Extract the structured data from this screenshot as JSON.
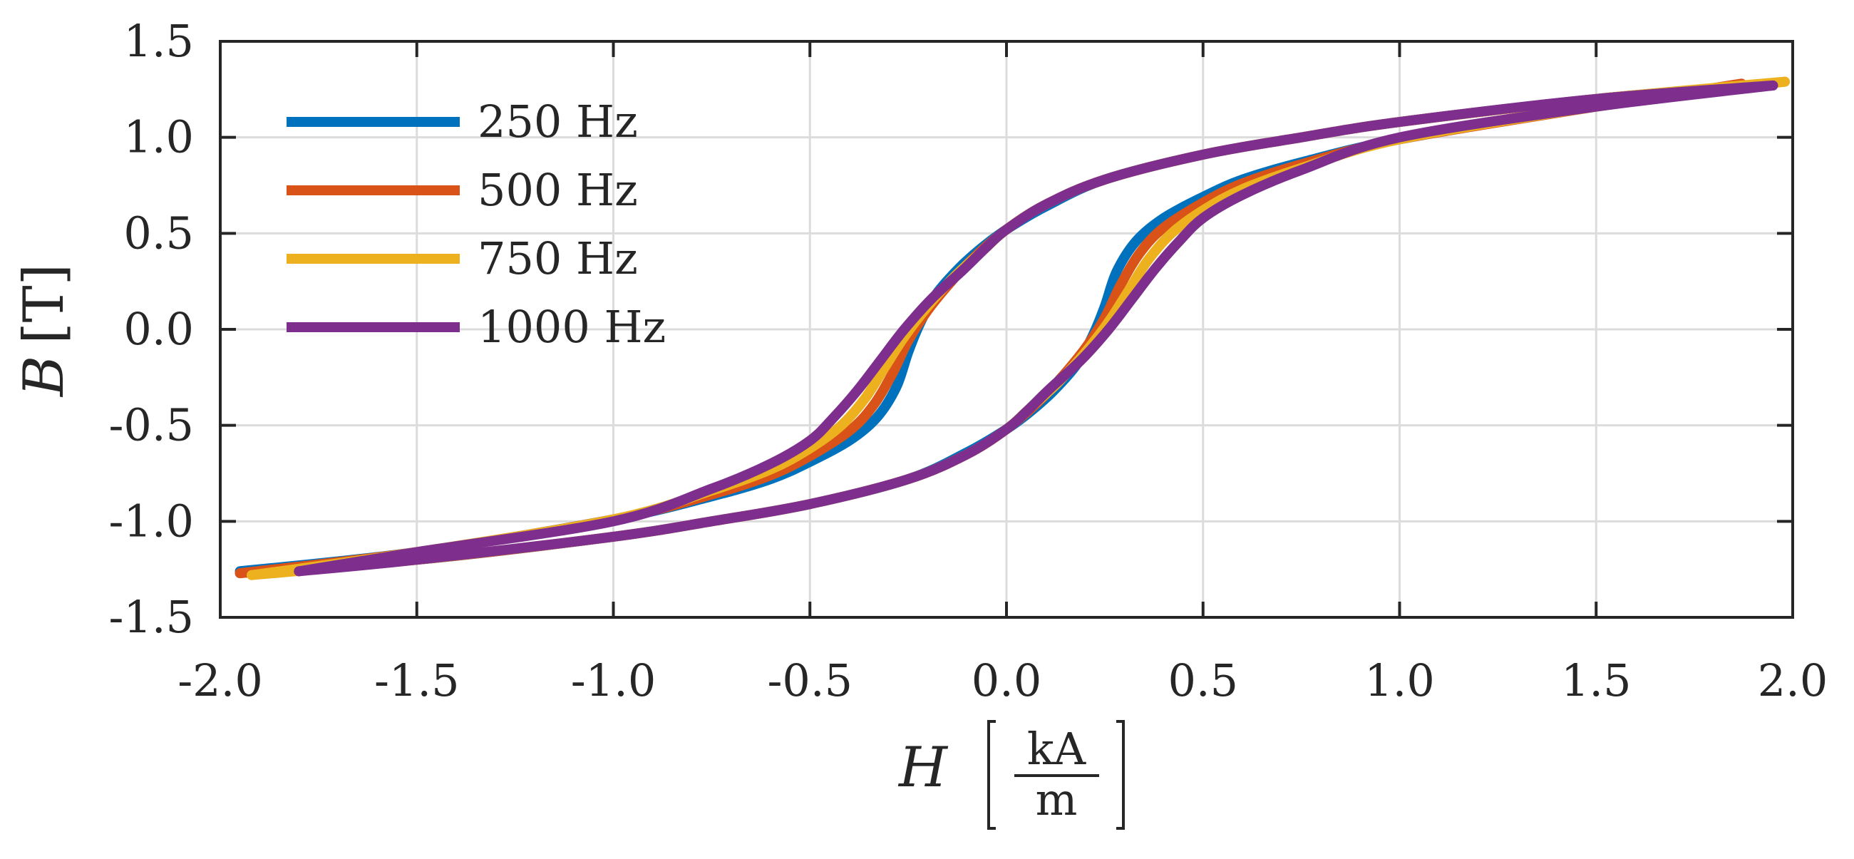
{
  "chart_data": {
    "type": "line",
    "title": "",
    "xlabel": {
      "symbol": "H",
      "unit_numerator": "kA",
      "unit_denominator": "m"
    },
    "ylabel": {
      "symbol": "B",
      "unit": "[T]"
    },
    "xlim": [
      -2.0,
      2.0
    ],
    "ylim": [
      -1.5,
      1.5
    ],
    "xticks": [
      -2.0,
      -1.5,
      -1.0,
      -0.5,
      0.0,
      0.5,
      1.0,
      1.5,
      2.0
    ],
    "yticks": [
      -1.5,
      -1.0,
      -0.5,
      0.0,
      0.5,
      1.0,
      1.5
    ],
    "xtick_labels": [
      "-2.0",
      "-1.5",
      "-1.0",
      "-0.5",
      "0.0",
      "0.5",
      "1.0",
      "1.5",
      "2.0"
    ],
    "ytick_labels": [
      "-1.5",
      "-1.0",
      "-0.5",
      "0.0",
      "0.5",
      "1.0",
      "1.5"
    ],
    "grid": true,
    "legend_position": "top-left",
    "series": [
      {
        "name": "250 Hz",
        "color": "#0072BD",
        "upper": [
          [
            -1.95,
            -1.26
          ],
          [
            -1.5,
            -1.16
          ],
          [
            -1.0,
            -0.99
          ],
          [
            -0.75,
            -0.87
          ],
          [
            -0.6,
            -0.78
          ],
          [
            -0.5,
            -0.69
          ],
          [
            -0.4,
            -0.58
          ],
          [
            -0.33,
            -0.46
          ],
          [
            -0.28,
            -0.3
          ],
          [
            -0.25,
            -0.12
          ],
          [
            -0.22,
            0.03
          ],
          [
            -0.18,
            0.18
          ],
          [
            -0.12,
            0.32
          ],
          [
            -0.06,
            0.43
          ],
          [
            0.0,
            0.52
          ],
          [
            0.1,
            0.64
          ],
          [
            0.25,
            0.78
          ],
          [
            0.5,
            0.91
          ],
          [
            0.75,
            1.0
          ],
          [
            1.0,
            1.08
          ],
          [
            1.5,
            1.2
          ],
          [
            1.95,
            1.28
          ]
        ],
        "lower": [
          [
            1.95,
            1.28
          ],
          [
            1.5,
            1.16
          ],
          [
            1.0,
            0.99
          ],
          [
            0.75,
            0.87
          ],
          [
            0.6,
            0.78
          ],
          [
            0.5,
            0.69
          ],
          [
            0.4,
            0.58
          ],
          [
            0.33,
            0.46
          ],
          [
            0.28,
            0.3
          ],
          [
            0.25,
            0.12
          ],
          [
            0.22,
            -0.03
          ],
          [
            0.18,
            -0.18
          ],
          [
            0.12,
            -0.32
          ],
          [
            0.06,
            -0.43
          ],
          [
            0.0,
            -0.52
          ],
          [
            -0.1,
            -0.64
          ],
          [
            -0.25,
            -0.78
          ],
          [
            -0.5,
            -0.91
          ],
          [
            -0.75,
            -1.0
          ],
          [
            -1.0,
            -1.08
          ],
          [
            -1.5,
            -1.2
          ],
          [
            -1.95,
            -1.26
          ]
        ]
      },
      {
        "name": "500 Hz",
        "color": "#D95319",
        "upper": [
          [
            -1.95,
            -1.27
          ],
          [
            -1.5,
            -1.16
          ],
          [
            -1.0,
            -0.99
          ],
          [
            -0.75,
            -0.86
          ],
          [
            -0.6,
            -0.76
          ],
          [
            -0.5,
            -0.66
          ],
          [
            -0.4,
            -0.53
          ],
          [
            -0.34,
            -0.4
          ],
          [
            -0.29,
            -0.23
          ],
          [
            -0.25,
            -0.06
          ],
          [
            -0.2,
            0.1
          ],
          [
            -0.14,
            0.25
          ],
          [
            -0.08,
            0.38
          ],
          [
            0.0,
            0.52
          ],
          [
            0.1,
            0.65
          ],
          [
            0.25,
            0.78
          ],
          [
            0.5,
            0.91
          ],
          [
            0.75,
            1.0
          ],
          [
            1.0,
            1.08
          ],
          [
            1.5,
            1.2
          ],
          [
            1.95,
            1.28
          ]
        ],
        "lower": [
          [
            1.87,
            1.28
          ],
          [
            1.5,
            1.16
          ],
          [
            1.0,
            0.99
          ],
          [
            0.75,
            0.86
          ],
          [
            0.6,
            0.76
          ],
          [
            0.5,
            0.66
          ],
          [
            0.4,
            0.53
          ],
          [
            0.34,
            0.4
          ],
          [
            0.29,
            0.23
          ],
          [
            0.25,
            0.06
          ],
          [
            0.2,
            -0.1
          ],
          [
            0.14,
            -0.25
          ],
          [
            0.08,
            -0.38
          ],
          [
            0.0,
            -0.52
          ],
          [
            -0.1,
            -0.65
          ],
          [
            -0.25,
            -0.78
          ],
          [
            -0.5,
            -0.91
          ],
          [
            -0.75,
            -1.0
          ],
          [
            -1.0,
            -1.08
          ],
          [
            -1.5,
            -1.2
          ],
          [
            -1.95,
            -1.27
          ]
        ]
      },
      {
        "name": "750 Hz",
        "color": "#EDB120",
        "upper": [
          [
            -1.92,
            -1.28
          ],
          [
            -1.5,
            -1.16
          ],
          [
            -1.0,
            -0.99
          ],
          [
            -0.75,
            -0.84
          ],
          [
            -0.6,
            -0.73
          ],
          [
            -0.5,
            -0.62
          ],
          [
            -0.42,
            -0.5
          ],
          [
            -0.36,
            -0.36
          ],
          [
            -0.31,
            -0.2
          ],
          [
            -0.26,
            -0.04
          ],
          [
            -0.2,
            0.12
          ],
          [
            -0.13,
            0.28
          ],
          [
            -0.06,
            0.41
          ],
          [
            0.0,
            0.52
          ],
          [
            0.1,
            0.65
          ],
          [
            0.25,
            0.78
          ],
          [
            0.5,
            0.91
          ],
          [
            0.75,
            1.0
          ],
          [
            1.0,
            1.08
          ],
          [
            1.5,
            1.2
          ],
          [
            1.98,
            1.29
          ]
        ],
        "lower": [
          [
            1.98,
            1.29
          ],
          [
            1.5,
            1.16
          ],
          [
            1.0,
            0.99
          ],
          [
            0.75,
            0.84
          ],
          [
            0.6,
            0.73
          ],
          [
            0.5,
            0.62
          ],
          [
            0.42,
            0.5
          ],
          [
            0.36,
            0.36
          ],
          [
            0.31,
            0.2
          ],
          [
            0.26,
            0.04
          ],
          [
            0.2,
            -0.12
          ],
          [
            0.13,
            -0.28
          ],
          [
            0.06,
            -0.41
          ],
          [
            0.0,
            -0.52
          ],
          [
            -0.1,
            -0.65
          ],
          [
            -0.25,
            -0.78
          ],
          [
            -0.5,
            -0.91
          ],
          [
            -0.75,
            -1.0
          ],
          [
            -1.0,
            -1.08
          ],
          [
            -1.5,
            -1.2
          ],
          [
            -1.92,
            -1.28
          ]
        ]
      },
      {
        "name": "1000 Hz",
        "color": "#7E2F8E",
        "upper": [
          [
            -1.8,
            -1.26
          ],
          [
            -1.5,
            -1.16
          ],
          [
            -1.0,
            -1.0
          ],
          [
            -0.75,
            -0.83
          ],
          [
            -0.6,
            -0.7
          ],
          [
            -0.5,
            -0.58
          ],
          [
            -0.44,
            -0.46
          ],
          [
            -0.38,
            -0.32
          ],
          [
            -0.32,
            -0.16
          ],
          [
            -0.26,
            0.0
          ],
          [
            -0.19,
            0.16
          ],
          [
            -0.11,
            0.31
          ],
          [
            -0.05,
            0.43
          ],
          [
            0.0,
            0.52
          ],
          [
            0.1,
            0.65
          ],
          [
            0.25,
            0.78
          ],
          [
            0.5,
            0.91
          ],
          [
            0.75,
            1.0
          ],
          [
            1.0,
            1.08
          ],
          [
            1.5,
            1.2
          ],
          [
            1.95,
            1.27
          ]
        ],
        "lower": [
          [
            1.95,
            1.27
          ],
          [
            1.5,
            1.16
          ],
          [
            1.0,
            1.0
          ],
          [
            0.75,
            0.83
          ],
          [
            0.6,
            0.7
          ],
          [
            0.5,
            0.58
          ],
          [
            0.44,
            0.46
          ],
          [
            0.38,
            0.32
          ],
          [
            0.32,
            0.16
          ],
          [
            0.26,
            0.0
          ],
          [
            0.19,
            -0.16
          ],
          [
            0.11,
            -0.31
          ],
          [
            0.05,
            -0.43
          ],
          [
            0.0,
            -0.52
          ],
          [
            -0.1,
            -0.65
          ],
          [
            -0.25,
            -0.78
          ],
          [
            -0.5,
            -0.91
          ],
          [
            -0.75,
            -1.0
          ],
          [
            -1.0,
            -1.08
          ],
          [
            -1.5,
            -1.2
          ],
          [
            -1.8,
            -1.26
          ]
        ]
      }
    ]
  }
}
